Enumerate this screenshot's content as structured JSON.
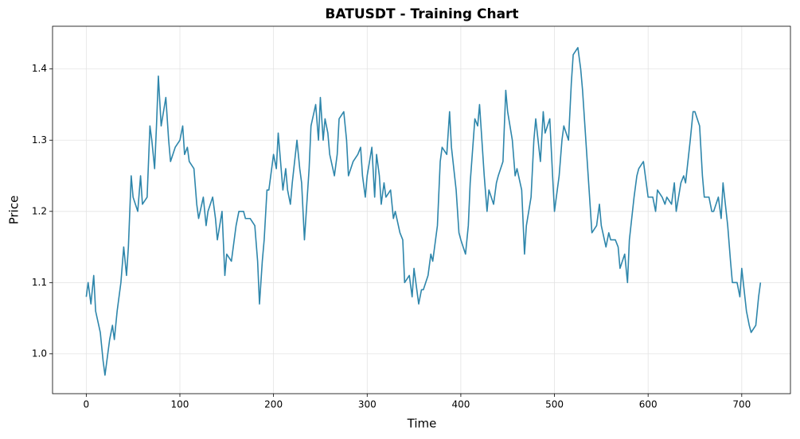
{
  "chart_data": {
    "type": "line",
    "title": "BATUSDT - Training Chart",
    "x_label": "Time",
    "y_label": "Price",
    "x": [
      0,
      2,
      5,
      8,
      10,
      15,
      18,
      20,
      22,
      25,
      28,
      30,
      33,
      37,
      40,
      43,
      45,
      48,
      50,
      55,
      58,
      60,
      65,
      68,
      70,
      73,
      75,
      77,
      80,
      85,
      88,
      90,
      95,
      100,
      103,
      105,
      108,
      110,
      115,
      118,
      120,
      125,
      128,
      130,
      135,
      138,
      140,
      145,
      148,
      150,
      155,
      160,
      163,
      168,
      170,
      175,
      180,
      183,
      185,
      188,
      190,
      193,
      195,
      200,
      203,
      205,
      210,
      213,
      215,
      218,
      220,
      225,
      228,
      230,
      233,
      235,
      238,
      240,
      245,
      248,
      250,
      253,
      255,
      258,
      260,
      265,
      268,
      270,
      275,
      278,
      280,
      285,
      290,
      293,
      295,
      298,
      300,
      305,
      308,
      310,
      313,
      315,
      318,
      320,
      325,
      328,
      330,
      335,
      338,
      340,
      345,
      348,
      350,
      355,
      358,
      360,
      365,
      368,
      370,
      375,
      378,
      380,
      385,
      388,
      390,
      395,
      398,
      400,
      405,
      408,
      410,
      415,
      418,
      420,
      425,
      428,
      430,
      435,
      438,
      440,
      445,
      448,
      450,
      455,
      458,
      460,
      465,
      468,
      470,
      475,
      478,
      480,
      485,
      488,
      490,
      495,
      498,
      500,
      505,
      508,
      510,
      515,
      518,
      520,
      525,
      528,
      530,
      535,
      538,
      540,
      545,
      548,
      550,
      555,
      558,
      560,
      565,
      568,
      570,
      575,
      578,
      580,
      585,
      588,
      590,
      595,
      598,
      600,
      605,
      608,
      610,
      615,
      618,
      620,
      625,
      628,
      630,
      635,
      638,
      640,
      645,
      648,
      650,
      655,
      658,
      660,
      665,
      668,
      670,
      675,
      678,
      680,
      685,
      688,
      690,
      695,
      698,
      700,
      705,
      708,
      710,
      715,
      718,
      720
    ],
    "series": [
      {
        "name": "BATUSDT",
        "color": "#2e86ab",
        "values": [
          1.08,
          1.1,
          1.07,
          1.11,
          1.06,
          1.03,
          0.99,
          0.97,
          0.99,
          1.02,
          1.04,
          1.02,
          1.06,
          1.1,
          1.15,
          1.11,
          1.15,
          1.25,
          1.22,
          1.2,
          1.25,
          1.21,
          1.22,
          1.32,
          1.3,
          1.26,
          1.32,
          1.39,
          1.32,
          1.36,
          1.3,
          1.27,
          1.29,
          1.3,
          1.32,
          1.28,
          1.29,
          1.27,
          1.26,
          1.21,
          1.19,
          1.22,
          1.18,
          1.2,
          1.22,
          1.19,
          1.16,
          1.2,
          1.11,
          1.14,
          1.13,
          1.18,
          1.2,
          1.2,
          1.19,
          1.19,
          1.18,
          1.13,
          1.07,
          1.13,
          1.16,
          1.23,
          1.23,
          1.28,
          1.26,
          1.31,
          1.23,
          1.26,
          1.23,
          1.21,
          1.24,
          1.3,
          1.26,
          1.24,
          1.16,
          1.2,
          1.26,
          1.32,
          1.35,
          1.3,
          1.36,
          1.3,
          1.33,
          1.31,
          1.28,
          1.25,
          1.28,
          1.33,
          1.34,
          1.3,
          1.25,
          1.27,
          1.28,
          1.29,
          1.25,
          1.22,
          1.25,
          1.29,
          1.22,
          1.28,
          1.25,
          1.21,
          1.24,
          1.22,
          1.23,
          1.19,
          1.2,
          1.17,
          1.16,
          1.1,
          1.11,
          1.08,
          1.12,
          1.07,
          1.09,
          1.09,
          1.11,
          1.14,
          1.13,
          1.18,
          1.27,
          1.29,
          1.28,
          1.34,
          1.29,
          1.23,
          1.17,
          1.16,
          1.14,
          1.18,
          1.24,
          1.33,
          1.32,
          1.35,
          1.25,
          1.2,
          1.23,
          1.21,
          1.24,
          1.25,
          1.27,
          1.37,
          1.34,
          1.3,
          1.25,
          1.26,
          1.23,
          1.14,
          1.18,
          1.22,
          1.3,
          1.33,
          1.27,
          1.34,
          1.31,
          1.33,
          1.25,
          1.2,
          1.25,
          1.3,
          1.32,
          1.3,
          1.38,
          1.42,
          1.43,
          1.4,
          1.37,
          1.27,
          1.21,
          1.17,
          1.18,
          1.21,
          1.18,
          1.15,
          1.17,
          1.16,
          1.16,
          1.15,
          1.12,
          1.14,
          1.1,
          1.16,
          1.22,
          1.25,
          1.26,
          1.27,
          1.24,
          1.22,
          1.22,
          1.2,
          1.23,
          1.22,
          1.21,
          1.22,
          1.21,
          1.24,
          1.2,
          1.24,
          1.25,
          1.24,
          1.3,
          1.34,
          1.34,
          1.32,
          1.25,
          1.22,
          1.22,
          1.2,
          1.2,
          1.22,
          1.19,
          1.24,
          1.18,
          1.13,
          1.1,
          1.1,
          1.08,
          1.12,
          1.06,
          1.04,
          1.03,
          1.04,
          1.08,
          1.1
        ]
      }
    ],
    "xlim": [
      -36,
      752
    ],
    "xticks": [
      0,
      100,
      200,
      300,
      400,
      500,
      600,
      700
    ],
    "ylim": [
      0.944,
      1.46
    ],
    "yticks": [
      {
        "value": 1,
        "label": "1.0"
      },
      1.1,
      1.2,
      1.3,
      1.4
    ],
    "grid": true
  }
}
